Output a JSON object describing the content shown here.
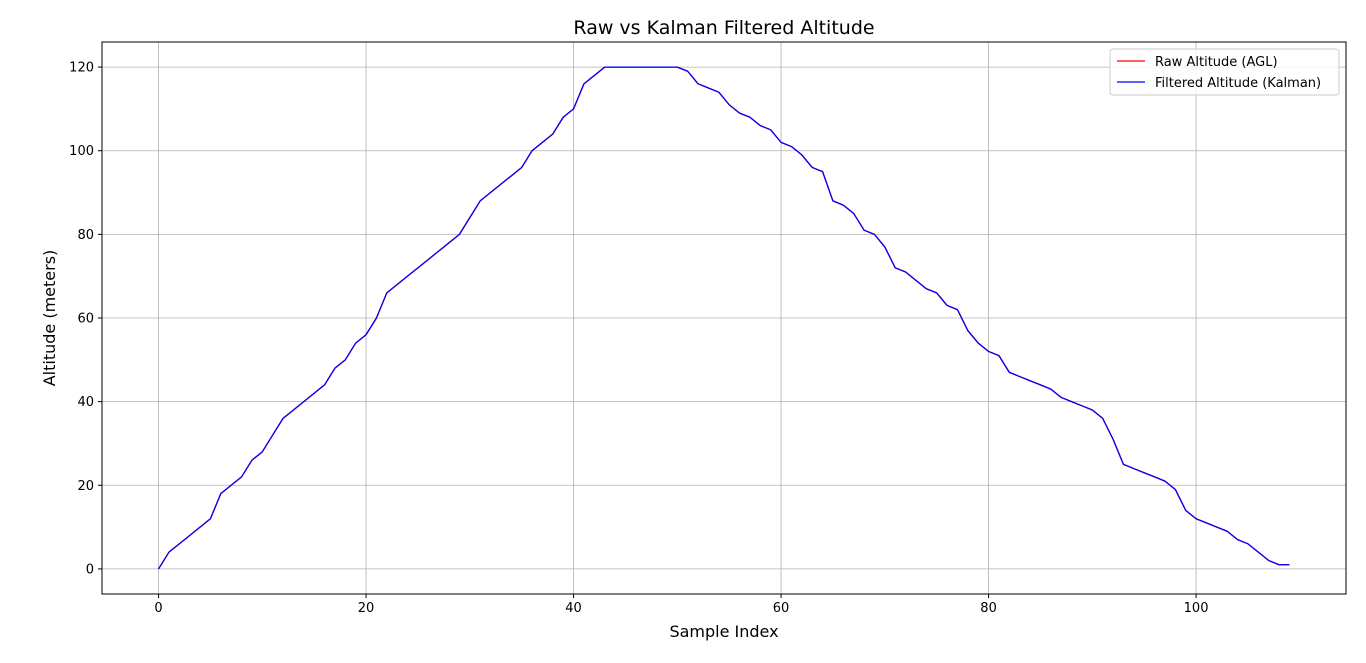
{
  "chart_data": {
    "type": "line",
    "title": "Raw vs Kalman Filtered Altitude",
    "xlabel": "Sample Index",
    "ylabel": "Altitude (meters)",
    "xlim": [
      -5.45,
      114.45
    ],
    "ylim": [
      -6,
      126
    ],
    "xticks": [
      0,
      20,
      40,
      60,
      80,
      100
    ],
    "yticks": [
      0,
      20,
      40,
      60,
      80,
      100,
      120
    ],
    "grid": true,
    "legend_position": "top-right",
    "x": [
      0,
      1,
      2,
      3,
      4,
      5,
      6,
      7,
      8,
      9,
      10,
      11,
      12,
      13,
      14,
      15,
      16,
      17,
      18,
      19,
      20,
      21,
      22,
      23,
      24,
      25,
      26,
      27,
      28,
      29,
      30,
      31,
      32,
      33,
      34,
      35,
      36,
      37,
      38,
      39,
      40,
      41,
      42,
      43,
      44,
      45,
      46,
      47,
      48,
      49,
      50,
      51,
      52,
      53,
      54,
      55,
      56,
      57,
      58,
      59,
      60,
      61,
      62,
      63,
      64,
      65,
      66,
      67,
      68,
      69,
      70,
      71,
      72,
      73,
      74,
      75,
      76,
      77,
      78,
      79,
      80,
      81,
      82,
      83,
      84,
      85,
      86,
      87,
      88,
      89,
      90,
      91,
      92,
      93,
      94,
      95,
      96,
      97,
      98,
      99,
      100,
      101,
      102,
      103,
      104,
      105,
      106,
      107,
      108,
      109
    ],
    "series": [
      {
        "name": "Raw Altitude (AGL)",
        "color": "#ff0000",
        "values": [
          0,
          4,
          6,
          8,
          10,
          12,
          18,
          20,
          22,
          26,
          28,
          32,
          36,
          38,
          40,
          42,
          44,
          48,
          50,
          54,
          56,
          60,
          66,
          68,
          70,
          72,
          74,
          76,
          78,
          80,
          84,
          88,
          90,
          92,
          94,
          96,
          100,
          102,
          104,
          108,
          110,
          116,
          118,
          120,
          120,
          120,
          120,
          120,
          120,
          120,
          120,
          119,
          116,
          115,
          114,
          111,
          109,
          108,
          106,
          105,
          102,
          101,
          99,
          96,
          95,
          88,
          87,
          85,
          81,
          80,
          77,
          72,
          71,
          69,
          67,
          66,
          63,
          62,
          57,
          54,
          52,
          51,
          47,
          46,
          45,
          44,
          43,
          41,
          40,
          39,
          38,
          36,
          31,
          25,
          24,
          23,
          22,
          21,
          19,
          14,
          12,
          11,
          10,
          9,
          7,
          6,
          4,
          2,
          1,
          1
        ]
      },
      {
        "name": "Filtered Altitude (Kalman)",
        "color": "#0000ff",
        "values": [
          0,
          4,
          6,
          8,
          10,
          12,
          18,
          20,
          22,
          26,
          28,
          32,
          36,
          38,
          40,
          42,
          44,
          48,
          50,
          54,
          56,
          60,
          66,
          68,
          70,
          72,
          74,
          76,
          78,
          80,
          84,
          88,
          90,
          92,
          94,
          96,
          100,
          102,
          104,
          108,
          110,
          116,
          118,
          120,
          120,
          120,
          120,
          120,
          120,
          120,
          120,
          119,
          116,
          115,
          114,
          111,
          109,
          108,
          106,
          105,
          102,
          101,
          99,
          96,
          95,
          88,
          87,
          85,
          81,
          80,
          77,
          72,
          71,
          69,
          67,
          66,
          63,
          62,
          57,
          54,
          52,
          51,
          47,
          46,
          45,
          44,
          43,
          41,
          40,
          39,
          38,
          36,
          31,
          25,
          24,
          23,
          22,
          21,
          19,
          14,
          12,
          11,
          10,
          9,
          7,
          6,
          4,
          2,
          1,
          1
        ]
      }
    ]
  }
}
